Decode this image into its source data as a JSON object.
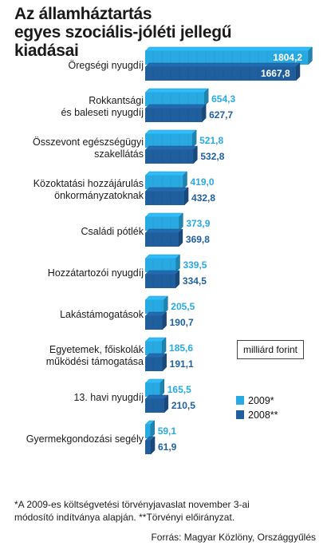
{
  "chart_data": {
    "type": "bar",
    "orientation": "horizontal",
    "title_lines": [
      "Az államháztartás",
      "egyes szociális-jóléti jellegű",
      "kiadásai"
    ],
    "categories": [
      [
        "Öregségi nyugdíj"
      ],
      [
        "Rokkantsági",
        "és baleseti nyugdíj"
      ],
      [
        "Összevont egészségügyi",
        "szakellátás"
      ],
      [
        "Közoktatási hozzájárulás",
        "önkormányzatoknak"
      ],
      [
        "Családi pótlék"
      ],
      [
        "Hozzátartozói nyugdíj"
      ],
      [
        "Lakástámogatások"
      ],
      [
        "Egyetemek, főiskolák",
        "működési támogatása"
      ],
      [
        "13. havi nyugdíj"
      ],
      [
        "Gyermekgondozási segély"
      ]
    ],
    "series": [
      {
        "name": "2009*",
        "color": "#29a9e1",
        "values": [
          1804.2,
          654.3,
          521.8,
          419.0,
          373.9,
          339.5,
          205.5,
          185.6,
          165.5,
          59.1
        ],
        "labels": [
          "1804,2",
          "654,3",
          "521,8",
          "419,0",
          "373,9",
          "339,5",
          "205,5",
          "185,6",
          "165,5",
          "59,1"
        ]
      },
      {
        "name": "2008**",
        "color": "#1f5f9e",
        "values": [
          1667.8,
          627.7,
          532.8,
          432.8,
          369.8,
          334.5,
          190.7,
          191.1,
          210.5,
          61.9
        ],
        "labels": [
          "1667,8",
          "627,7",
          "532,8",
          "432,8",
          "369,8",
          "334,5",
          "190,7",
          "191,1",
          "210,5",
          "61,9"
        ]
      }
    ],
    "unit": "milliárd forint",
    "grid": false,
    "legend": "right"
  },
  "footnote_lines": [
    "*A 2009-es költségvetési törvényjavaslat november 3-ai",
    "módosító indítványa alapján. **Törvényi előirányzat."
  ],
  "source": "Forrás: Magyar Közlöny, Országgyűlés"
}
